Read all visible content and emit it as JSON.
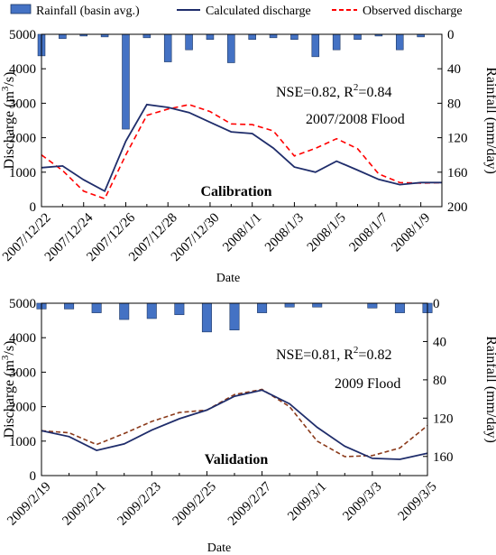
{
  "legend": {
    "rainfall": "Rainfall (basin avg.)",
    "calculated": "Calculated discharge",
    "observed": "Observed discharge"
  },
  "colors": {
    "rain_bar": "#4472C4",
    "rain_bar_edge": "#1F3864",
    "calculated": "#1F2D6B",
    "observed_top": "#FF0000",
    "observed_bottom": "#8B3A1A"
  },
  "chart_data": [
    {
      "type": "line",
      "title": "",
      "panel_label": "Calibration",
      "annotation_nse": "NSE=0.82, R",
      "annotation_sup": "2",
      "annotation_r2": "=0.84",
      "annotation_event": "2007/2008 Flood",
      "xlabel": "Date",
      "ylabel_left_main": "Discharge (m",
      "ylabel_left_sup": "3",
      "ylabel_left_end": "/s)",
      "ylabel_right": "Rainfall (mm/day)",
      "ylim": [
        0,
        5000
      ],
      "y_ticks": [
        "0",
        "1000",
        "2000",
        "3000",
        "4000",
        "5000"
      ],
      "rain_lim": [
        0,
        200
      ],
      "rain_ticks": [
        "0",
        "40",
        "80",
        "120",
        "160",
        "200"
      ],
      "x_tick_labels": [
        "2007/12/22",
        "2007/12/24",
        "2007/12/26",
        "2007/12/28",
        "2007/12/30",
        "2008/1/1",
        "2008/1/3",
        "2008/1/5",
        "2008/1/7",
        "2008/1/9"
      ],
      "n_days": 20,
      "calculated": [
        1130,
        1180,
        780,
        450,
        1900,
        2960,
        2880,
        2730,
        2450,
        2170,
        2120,
        1700,
        1150,
        1000,
        1320,
        1060,
        790,
        640,
        700,
        700
      ],
      "observed": [
        1500,
        1050,
        450,
        230,
        1500,
        2650,
        2830,
        2960,
        2760,
        2400,
        2380,
        2200,
        1470,
        1690,
        1970,
        1680,
        950,
        700,
        680,
        700
      ],
      "rainfall": [
        25,
        5,
        2,
        3,
        110,
        4,
        32,
        18,
        6,
        33,
        6,
        4,
        6,
        26,
        18,
        6,
        2,
        18,
        3,
        0
      ]
    },
    {
      "type": "line",
      "title": "",
      "panel_label": "Validation",
      "annotation_nse": "NSE=0.81, R",
      "annotation_sup": "2",
      "annotation_r2": "=0.82",
      "annotation_event": "2009 Flood",
      "xlabel": "Date",
      "ylabel_left_main": "Discharge (m",
      "ylabel_left_sup": "3",
      "ylabel_left_end": "/s)",
      "ylabel_right": "Rainfall (mm/day)",
      "ylim": [
        0,
        5000
      ],
      "y_ticks": [
        "0",
        "1000",
        "2000",
        "3000",
        "4000",
        "5000"
      ],
      "rain_lim": [
        0,
        180
      ],
      "rain_ticks": [
        "0",
        "40",
        "80",
        "120",
        "160"
      ],
      "x_tick_labels": [
        "2009/2/19",
        "2009/2/21",
        "2009/2/23",
        "2009/2/25",
        "2009/2/27",
        "2009/3/1",
        "2009/3/3",
        "2009/3/5"
      ],
      "n_days": 15,
      "calculated": [
        1300,
        1130,
        730,
        920,
        1320,
        1650,
        1900,
        2300,
        2480,
        2080,
        1400,
        850,
        500,
        470,
        650
      ],
      "observed": [
        1300,
        1240,
        900,
        1220,
        1570,
        1830,
        1900,
        2350,
        2500,
        2000,
        1000,
        550,
        580,
        800,
        1450
      ],
      "rainfall": [
        6,
        6,
        10,
        17,
        16,
        12,
        30,
        28,
        10,
        4,
        4,
        0,
        5,
        10,
        10
      ]
    }
  ]
}
